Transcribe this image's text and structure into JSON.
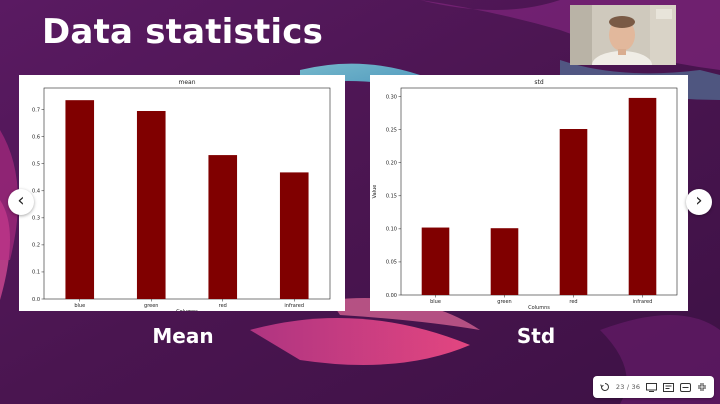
{
  "slide": {
    "title": "Data statistics",
    "caption_left": "Mean",
    "caption_right": "Std"
  },
  "navigation": {
    "prev_label": "‹",
    "next_label": "›"
  },
  "toolbar": {
    "counter": "23 / 36"
  },
  "colors": {
    "bar": "#800000",
    "background": "#4a1550",
    "accent_pink": "#e0428a",
    "accent_cyan": "#5fd0e0"
  },
  "chart_data": [
    {
      "type": "bar",
      "title": "mean",
      "xlabel": "Columns",
      "ylabel": "",
      "categories": [
        "blue",
        "green",
        "red",
        "infrared"
      ],
      "values": [
        0.735,
        0.695,
        0.532,
        0.468
      ],
      "ylim": [
        0,
        0.78
      ],
      "yticks": [
        0.0,
        0.1,
        0.2,
        0.3,
        0.4,
        0.5,
        0.6,
        0.7
      ],
      "ytick_labels": [
        "0.0",
        "0.1",
        "0.2",
        "0.3",
        "0.4",
        "0.5",
        "0.6",
        "0.7"
      ],
      "grid": false,
      "bar_color": "#800000"
    },
    {
      "type": "bar",
      "title": "std",
      "xlabel": "Columns",
      "ylabel": "Value",
      "categories": [
        "blue",
        "green",
        "red",
        "infrared"
      ],
      "values": [
        0.102,
        0.101,
        0.251,
        0.298
      ],
      "ylim": [
        0,
        0.313
      ],
      "yticks": [
        0.0,
        0.05,
        0.1,
        0.15,
        0.2,
        0.25,
        0.3
      ],
      "ytick_labels": [
        "0.00",
        "0.05",
        "0.10",
        "0.15",
        "0.20",
        "0.25",
        "0.30"
      ],
      "grid": false,
      "bar_color": "#800000"
    }
  ]
}
